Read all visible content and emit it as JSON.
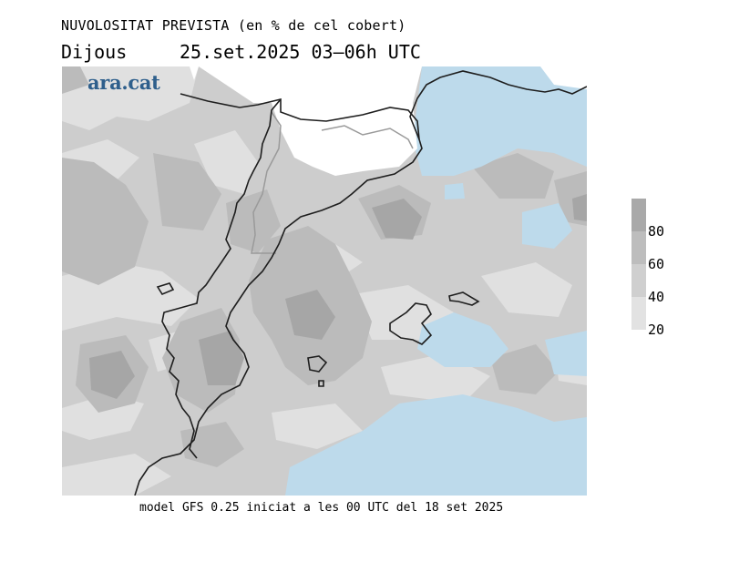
{
  "header": {
    "title": "NUVOLOSITAT PREVISTA (en % de cel cobert)",
    "day": "Dijous",
    "date_time": "25.set.2025 03–06h UTC"
  },
  "brand": {
    "logo_text": "ara.cat"
  },
  "footer": {
    "model_text": "model GFS 0.25 iniciat a les 00 UTC del 18 set 2025"
  },
  "legend": {
    "ticks": [
      "80",
      "60",
      "40",
      "20"
    ],
    "colors": [
      "#a9a9a9",
      "#bdbdbd",
      "#cfcfcf",
      "#e2e2e2"
    ]
  },
  "map": {
    "colors": {
      "clear_sky": "#ffffff",
      "sea_clear": "#bddaeb",
      "cloud_20": "#e0e0e0",
      "cloud_40": "#cdcdcd",
      "cloud_60": "#bbbbbb",
      "cloud_80": "#a6a6a6",
      "coastline": "#1e1e1e",
      "border": "#9a9a9a"
    }
  }
}
